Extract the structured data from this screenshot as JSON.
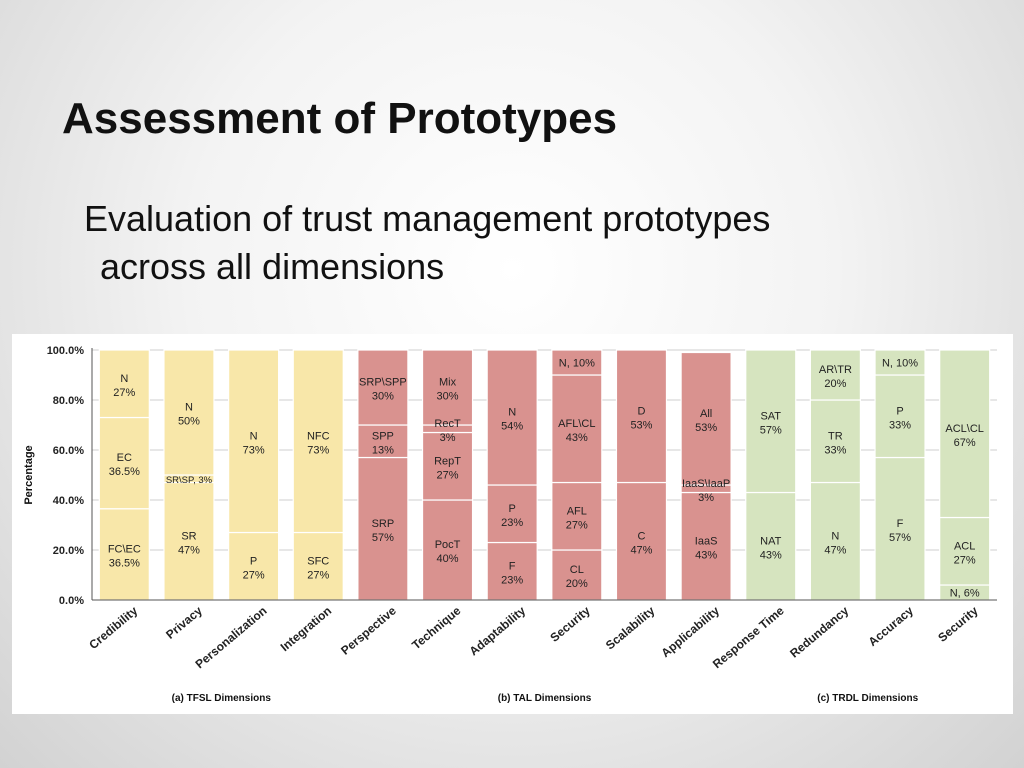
{
  "slide": {
    "title": "Assessment of Prototypes",
    "body_line1": "Evaluation of trust management prototypes",
    "body_line2": "across all dimensions"
  },
  "chart_data": {
    "type": "bar",
    "subtype": "stacked-100",
    "ylabel": "Percentage",
    "yticks": [
      "0.0%",
      "20.0%",
      "40.0%",
      "60.0%",
      "80.0%",
      "100.0%"
    ],
    "ylim": [
      0,
      100
    ],
    "grid": true,
    "colors": {
      "TFSL": "#f8e7a9",
      "TAL": "#d9928f",
      "TRDL": "#d6e4bf"
    },
    "groups": [
      {
        "label": "(a) TFSL Dimensions",
        "key": "TFSL",
        "columns": [
          0,
          3
        ]
      },
      {
        "label": "(b) TAL Dimensions",
        "key": "TAL",
        "columns": [
          4,
          9
        ]
      },
      {
        "label": "(c) TRDL Dimensions",
        "key": "TRDL",
        "columns": [
          10,
          13
        ]
      }
    ],
    "categories": [
      "Credibility",
      "Privacy",
      "Personalization",
      "Integration",
      "Perspective",
      "Technique",
      "Adaptability",
      "Security",
      "Scalability",
      "Applicability",
      "Response Time",
      "Redundancy",
      "Accuracy",
      "Security"
    ],
    "bars": [
      {
        "group": "TFSL",
        "segments": [
          {
            "name": "FC\\EC",
            "pct": "36.5%",
            "value": 36.5
          },
          {
            "name": "EC",
            "pct": "36.5%",
            "value": 36.5
          },
          {
            "name": "N",
            "pct": "27%",
            "value": 27
          }
        ]
      },
      {
        "group": "TFSL",
        "segments": [
          {
            "name": "SR",
            "pct": "47%",
            "value": 47
          },
          {
            "name": "SR\\SP, 3%",
            "pct": "",
            "value": 3
          },
          {
            "name": "N",
            "pct": "50%",
            "value": 50
          }
        ]
      },
      {
        "group": "TFSL",
        "segments": [
          {
            "name": "P",
            "pct": "27%",
            "value": 27
          },
          {
            "name": "N",
            "pct": "73%",
            "value": 73
          }
        ]
      },
      {
        "group": "TFSL",
        "segments": [
          {
            "name": "SFC",
            "pct": "27%",
            "value": 27
          },
          {
            "name": "NFC",
            "pct": "73%",
            "value": 73
          }
        ]
      },
      {
        "group": "TAL",
        "segments": [
          {
            "name": "SRP",
            "pct": "57%",
            "value": 57
          },
          {
            "name": "SPP",
            "pct": "13%",
            "value": 13
          },
          {
            "name": "SRP\\SPP",
            "pct": "30%",
            "value": 30
          }
        ]
      },
      {
        "group": "TAL",
        "segments": [
          {
            "name": "PocT",
            "pct": "40%",
            "value": 40
          },
          {
            "name": "RepT",
            "pct": "27%",
            "value": 27
          },
          {
            "name": "RecT",
            "pct": "3%",
            "value": 3
          },
          {
            "name": "Mix",
            "pct": "30%",
            "value": 30
          }
        ]
      },
      {
        "group": "TAL",
        "segments": [
          {
            "name": "F",
            "pct": "23%",
            "value": 23
          },
          {
            "name": "P",
            "pct": "23%",
            "value": 23
          },
          {
            "name": "N",
            "pct": "54%",
            "value": 54
          }
        ]
      },
      {
        "group": "TAL",
        "segments": [
          {
            "name": "CL",
            "pct": "20%",
            "value": 20
          },
          {
            "name": "AFL",
            "pct": "27%",
            "value": 27
          },
          {
            "name": "AFL\\CL",
            "pct": "43%",
            "value": 43
          },
          {
            "name": "N, 10%",
            "pct": "",
            "value": 10
          }
        ]
      },
      {
        "group": "TAL",
        "segments": [
          {
            "name": "C",
            "pct": "47%",
            "value": 47
          },
          {
            "name": "D",
            "pct": "53%",
            "value": 53
          }
        ]
      },
      {
        "group": "TAL",
        "segments": [
          {
            "name": "IaaS",
            "pct": "43%",
            "value": 43
          },
          {
            "name": "IaaS\\IaaP",
            "pct": "3%",
            "value": 3
          },
          {
            "name": "All",
            "pct": "53%",
            "value": 53
          }
        ]
      },
      {
        "group": "TRDL",
        "segments": [
          {
            "name": "NAT",
            "pct": "43%",
            "value": 43
          },
          {
            "name": "SAT",
            "pct": "57%",
            "value": 57
          }
        ]
      },
      {
        "group": "TRDL",
        "segments": [
          {
            "name": "N",
            "pct": "47%",
            "value": 47
          },
          {
            "name": "TR",
            "pct": "33%",
            "value": 33
          },
          {
            "name": "AR\\TR",
            "pct": "20%",
            "value": 20
          }
        ]
      },
      {
        "group": "TRDL",
        "segments": [
          {
            "name": "F",
            "pct": "57%",
            "value": 57
          },
          {
            "name": "P",
            "pct": "33%",
            "value": 33
          },
          {
            "name": "N, 10%",
            "pct": "",
            "value": 10
          }
        ]
      },
      {
        "group": "TRDL",
        "segments": [
          {
            "name": "N, 6%",
            "pct": "",
            "value": 6
          },
          {
            "name": "ACL",
            "pct": "27%",
            "value": 27
          },
          {
            "name": "ACL\\CL",
            "pct": "67%",
            "value": 67
          }
        ]
      }
    ]
  }
}
